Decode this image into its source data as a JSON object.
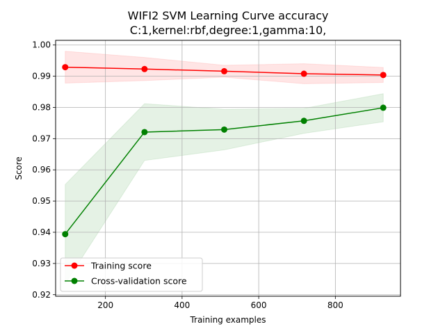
{
  "chart_data": {
    "type": "line",
    "title_line1": "WIFI2 SVM Learning Curve accuracy",
    "title_line2": "C:1,kernel:rbf,degree:1,gamma:10,",
    "xlabel": "Training examples",
    "ylabel": "Score",
    "xlim": [
      70,
      970
    ],
    "ylim": [
      0.9195,
      1.0015
    ],
    "grid": true,
    "legend_position": "lower-left",
    "x": [
      95,
      302,
      510,
      718,
      925
    ],
    "xticks": [
      200,
      400,
      600,
      800
    ],
    "xtick_labels": [
      "200",
      "400",
      "600",
      "800"
    ],
    "yticks": [
      0.92,
      0.93,
      0.94,
      0.95,
      0.96,
      0.97,
      0.98,
      0.99,
      1.0
    ],
    "ytick_labels": [
      "0.92",
      "0.93",
      "0.94",
      "0.95",
      "0.96",
      "0.97",
      "0.98",
      "0.99",
      "1.00"
    ],
    "series": [
      {
        "name": "Training score",
        "color": "#ff0000",
        "band_color": "#ff0000",
        "values": [
          0.9929,
          0.9923,
          0.9916,
          0.9908,
          0.9904
        ],
        "upper": [
          0.998,
          0.996,
          0.9935,
          0.994,
          0.9928
        ],
        "lower": [
          0.9878,
          0.9886,
          0.9897,
          0.9876,
          0.988
        ]
      },
      {
        "name": "Cross-validation score",
        "color": "#008000",
        "band_color": "#008000",
        "values": [
          0.9394,
          0.9721,
          0.9729,
          0.9757,
          0.9799
        ],
        "upper": [
          0.9553,
          0.9812,
          0.9794,
          0.9797,
          0.9844
        ],
        "lower": [
          0.9235,
          0.963,
          0.9664,
          0.9717,
          0.9754
        ]
      }
    ]
  }
}
